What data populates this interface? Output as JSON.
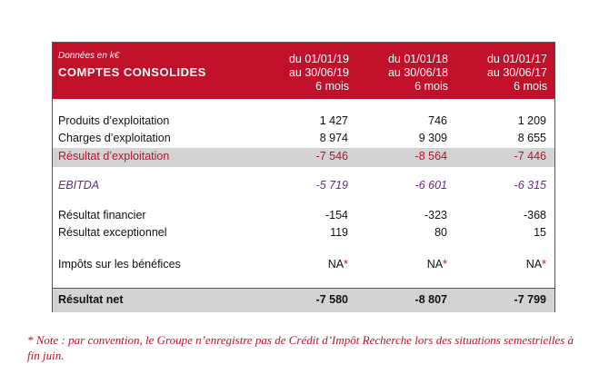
{
  "header": {
    "note": "Données en k€",
    "title": "COMPTES CONSOLIDES",
    "columns": [
      {
        "line1": "du 01/01/19",
        "line2": "au 30/06/19",
        "line3": "6 mois"
      },
      {
        "line1": "du 01/01/18",
        "line2": "au 30/06/18",
        "line3": "6 mois"
      },
      {
        "line1": "du 01/01/17",
        "line2": "au 30/06/17",
        "line3": "6 mois"
      }
    ]
  },
  "rows": [
    {
      "label": "Produits d’exploitation",
      "values": [
        "1 427",
        "746",
        "1 209"
      ]
    },
    {
      "label": "Charges d’exploitation",
      "values": [
        "8 974",
        "9 309",
        "8 655"
      ]
    },
    {
      "label": "Résultat d’exploitation",
      "values": [
        "-7 546",
        "-8 564",
        "-7 446"
      ]
    },
    {
      "label": "EBITDA",
      "values": [
        "-5 719",
        "-6 601",
        "-6 315"
      ]
    },
    {
      "label": "Résultat financier",
      "values": [
        "-154",
        "-323",
        "-368"
      ]
    },
    {
      "label": "Résultat exceptionnel",
      "values": [
        "119",
        "80",
        "15"
      ]
    },
    {
      "label": "Impôts sur les bénéfices",
      "values": [
        "NA",
        "NA",
        "NA"
      ],
      "mark": "*"
    },
    {
      "label": "Résultat net",
      "values": [
        "-7 580",
        "-8 807",
        "-7 799"
      ]
    }
  ],
  "footnote": "* Note : par convention, le Groupe n’enregistre pas de Crédit d’Impôt Recherche lors des situations semestrielles à fin juin.",
  "colors": {
    "brand_red": "#c0102a",
    "ebitda_purple": "#6a2a86",
    "shade_gray": "#d3d3d3"
  }
}
